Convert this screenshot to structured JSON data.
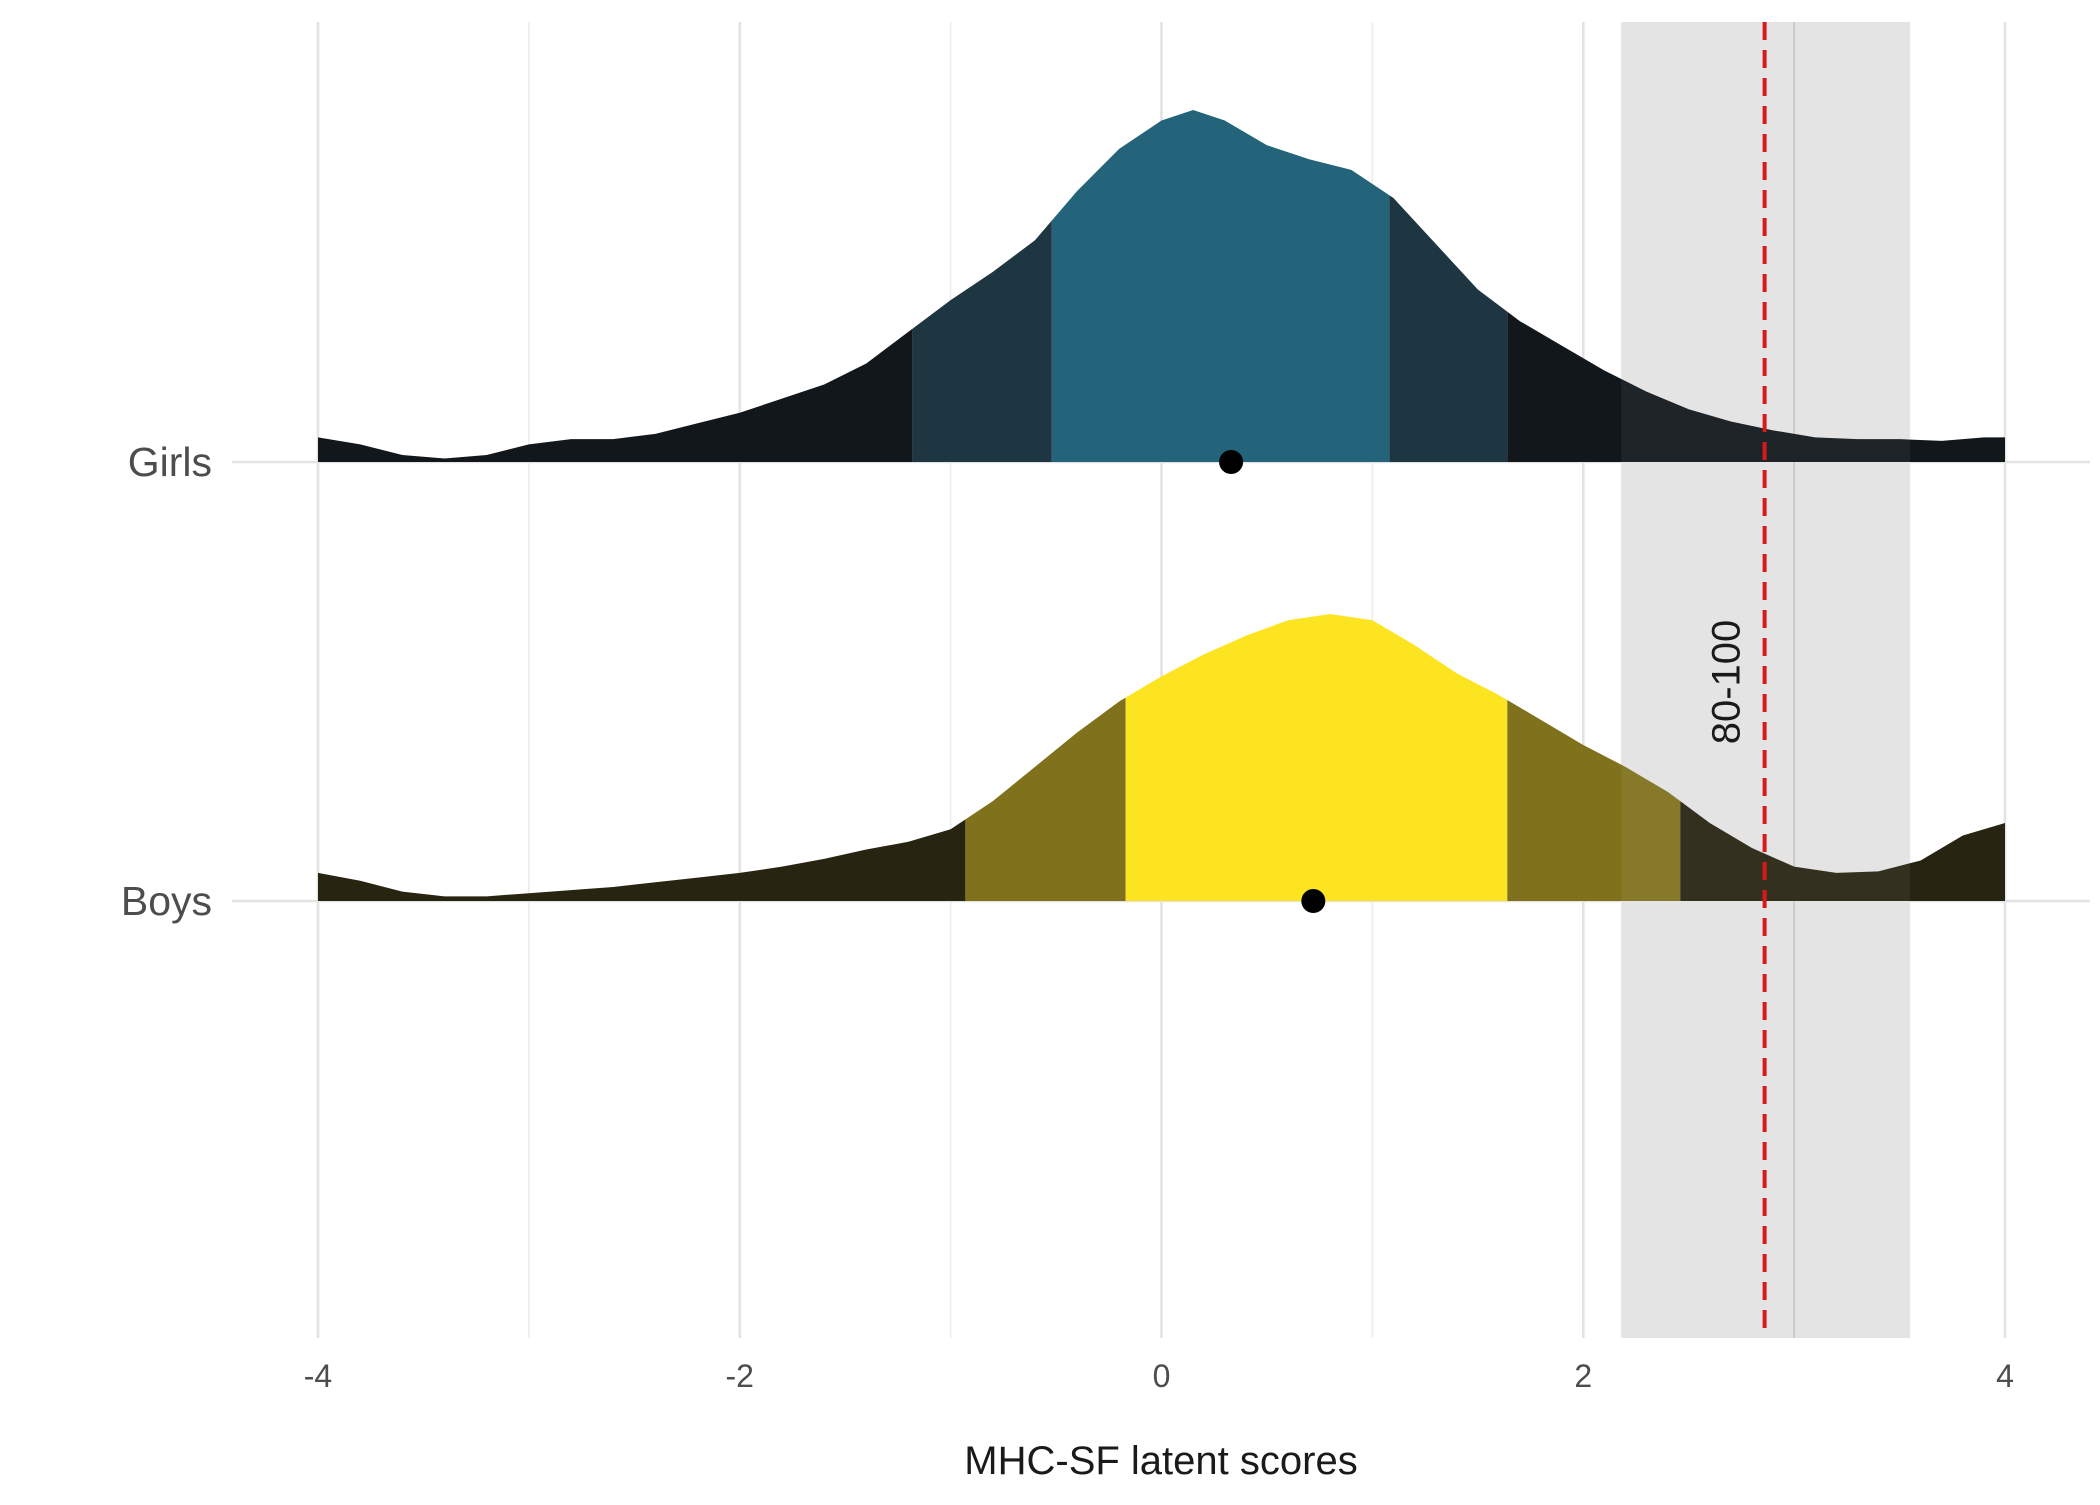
{
  "chart_data": {
    "type": "ridgeline",
    "xlabel": "MHC-SF latent scores",
    "ylabel": "",
    "xlim": [
      -4,
      4
    ],
    "x_ticks": [
      -4,
      -2,
      0,
      2,
      4
    ],
    "x_tick_labels": [
      "-4",
      "-2",
      "0",
      "2",
      "4"
    ],
    "grid": true,
    "reference_band": {
      "from": 2.18,
      "to": 3.55,
      "color": "#e3e3e3"
    },
    "reference_line": {
      "x": 2.86,
      "label": "80-100",
      "color": "#d7191c",
      "style": "dashed"
    },
    "series": [
      {
        "name": "Girls",
        "point": 0.33,
        "quantile_breaks": [
          -1.18,
          -0.52,
          1.08,
          1.64
        ],
        "colors": {
          "outer": "#12171b",
          "middle": "#1d3641",
          "inner": "#23647b"
        },
        "density": [
          [
            -4.0,
            0.07
          ],
          [
            -3.8,
            0.05
          ],
          [
            -3.6,
            0.02
          ],
          [
            -3.4,
            0.01
          ],
          [
            -3.2,
            0.02
          ],
          [
            -3.0,
            0.05
          ],
          [
            -2.8,
            0.065
          ],
          [
            -2.6,
            0.065
          ],
          [
            -2.4,
            0.08
          ],
          [
            -2.2,
            0.11
          ],
          [
            -2.0,
            0.14
          ],
          [
            -1.8,
            0.18
          ],
          [
            -1.6,
            0.22
          ],
          [
            -1.4,
            0.28
          ],
          [
            -1.2,
            0.37
          ],
          [
            -1.0,
            0.46
          ],
          [
            -0.8,
            0.54
          ],
          [
            -0.6,
            0.63
          ],
          [
            -0.4,
            0.77
          ],
          [
            -0.2,
            0.89
          ],
          [
            0.0,
            0.97
          ],
          [
            0.15,
            1.0
          ],
          [
            0.3,
            0.97
          ],
          [
            0.5,
            0.9
          ],
          [
            0.7,
            0.86
          ],
          [
            0.9,
            0.83
          ],
          [
            1.1,
            0.75
          ],
          [
            1.3,
            0.62
          ],
          [
            1.5,
            0.49
          ],
          [
            1.7,
            0.4
          ],
          [
            1.9,
            0.33
          ],
          [
            2.1,
            0.26
          ],
          [
            2.3,
            0.2
          ],
          [
            2.5,
            0.15
          ],
          [
            2.7,
            0.115
          ],
          [
            2.9,
            0.09
          ],
          [
            3.1,
            0.07
          ],
          [
            3.3,
            0.065
          ],
          [
            3.5,
            0.065
          ],
          [
            3.7,
            0.06
          ],
          [
            3.9,
            0.07
          ],
          [
            4.0,
            0.07
          ]
        ]
      },
      {
        "name": "Boys",
        "point": 0.72,
        "quantile_breaks": [
          -0.93,
          -0.17,
          1.64,
          2.46
        ],
        "colors": {
          "outer": "#282412",
          "middle": "#80711d",
          "inner": "#fde421"
        },
        "density": [
          [
            -4.0,
            0.09
          ],
          [
            -3.8,
            0.065
          ],
          [
            -3.6,
            0.03
          ],
          [
            -3.4,
            0.015
          ],
          [
            -3.2,
            0.015
          ],
          [
            -3.0,
            0.025
          ],
          [
            -2.8,
            0.035
          ],
          [
            -2.6,
            0.045
          ],
          [
            -2.4,
            0.06
          ],
          [
            -2.2,
            0.075
          ],
          [
            -2.0,
            0.09
          ],
          [
            -1.8,
            0.11
          ],
          [
            -1.6,
            0.135
          ],
          [
            -1.4,
            0.165
          ],
          [
            -1.2,
            0.19
          ],
          [
            -1.0,
            0.23
          ],
          [
            -0.8,
            0.32
          ],
          [
            -0.6,
            0.43
          ],
          [
            -0.4,
            0.54
          ],
          [
            -0.2,
            0.64
          ],
          [
            0.0,
            0.72
          ],
          [
            0.2,
            0.79
          ],
          [
            0.4,
            0.85
          ],
          [
            0.6,
            0.9
          ],
          [
            0.8,
            0.92
          ],
          [
            1.0,
            0.9
          ],
          [
            1.2,
            0.82
          ],
          [
            1.4,
            0.73
          ],
          [
            1.6,
            0.66
          ],
          [
            1.8,
            0.58
          ],
          [
            2.0,
            0.5
          ],
          [
            2.2,
            0.43
          ],
          [
            2.4,
            0.35
          ],
          [
            2.6,
            0.25
          ],
          [
            2.8,
            0.17
          ],
          [
            3.0,
            0.11
          ],
          [
            3.2,
            0.09
          ],
          [
            3.4,
            0.095
          ],
          [
            3.6,
            0.13
          ],
          [
            3.8,
            0.21
          ],
          [
            4.0,
            0.25
          ]
        ]
      }
    ]
  }
}
